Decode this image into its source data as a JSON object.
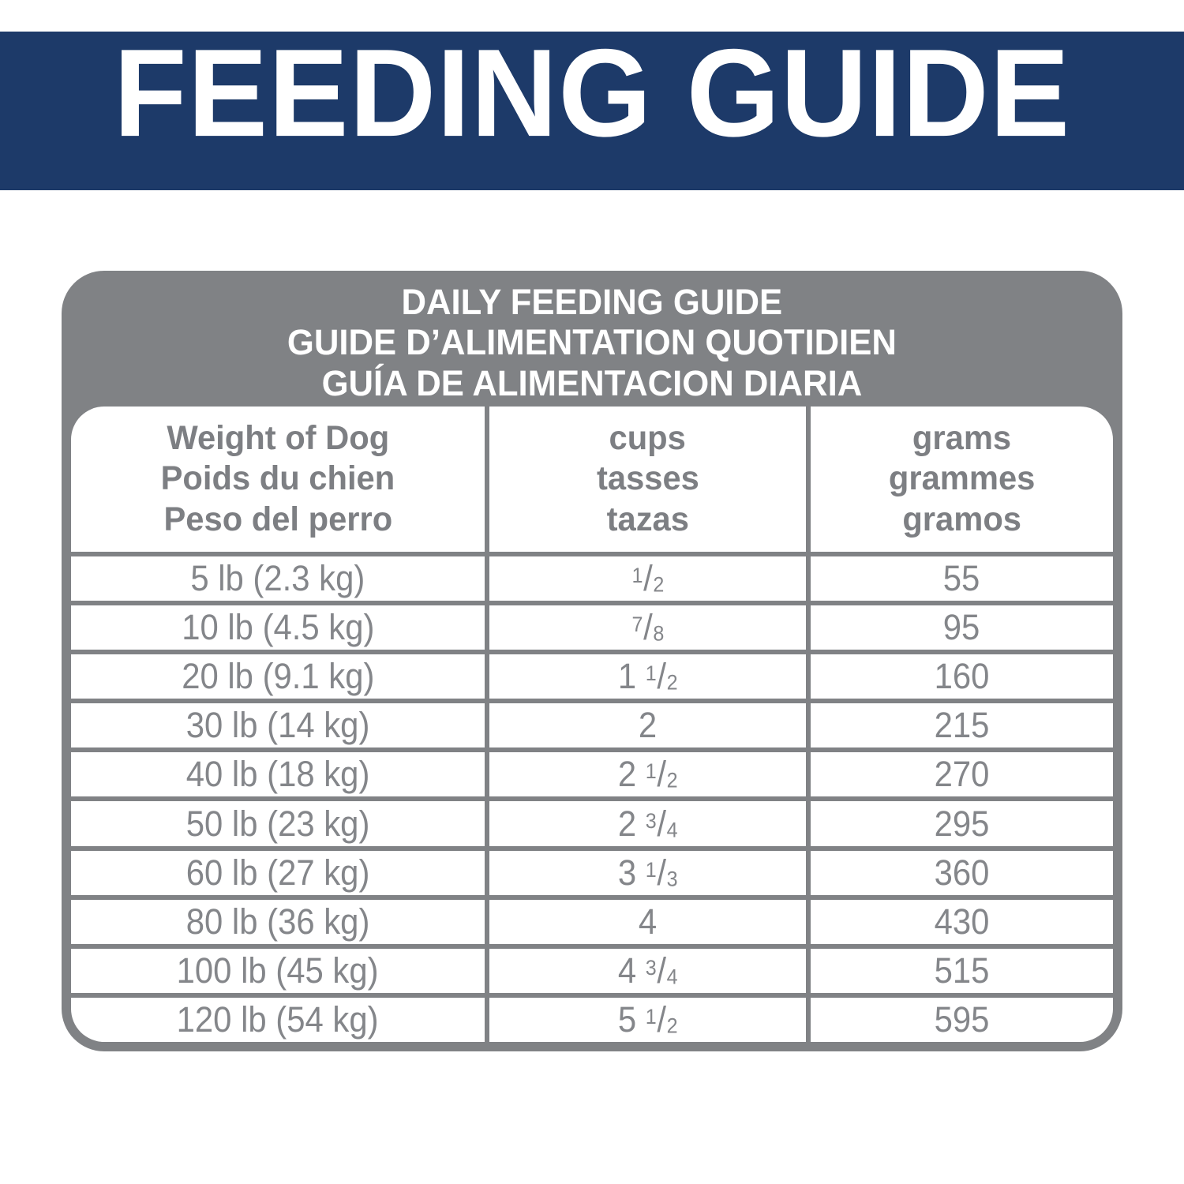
{
  "banner": {
    "title": "FEEDING GUIDE"
  },
  "colors": {
    "banner_bg": "#1d3a69",
    "banner_text": "#ffffff",
    "card_gray": "#808285",
    "card_title_text": "#ffffff",
    "table_text_gray": "#84868a",
    "table_bg": "#ffffff"
  },
  "card": {
    "title_lines": [
      "DAILY FEEDING GUIDE",
      "GUIDE D’ALIMENTATION QUOTIDIEN",
      "GUÍA DE ALIMENTACION DIARIA"
    ],
    "columns": [
      {
        "lines": [
          "Weight of Dog",
          "Poids du chien",
          "Peso del perro"
        ]
      },
      {
        "lines": [
          "cups",
          "tasses",
          "tazas"
        ]
      },
      {
        "lines": [
          "grams",
          "grammes",
          "gramos"
        ]
      }
    ]
  },
  "chart_data": {
    "type": "table",
    "title": "DAILY FEEDING GUIDE / GUIDE D’ALIMENTATION QUOTIDIEN / GUÍA DE ALIMENTACION DIARIA",
    "columns": [
      "Weight of Dog / Poids du chien / Peso del perro",
      "cups / tasses / tazas",
      "grams / grammes / gramos"
    ],
    "rows": [
      [
        "5 lb (2.3 kg)",
        "1/2",
        "55"
      ],
      [
        "10 lb (4.5 kg)",
        "7/8",
        "95"
      ],
      [
        "20 lb (9.1 kg)",
        "1 1/2",
        "160"
      ],
      [
        "30 lb (14 kg)",
        "2",
        "215"
      ],
      [
        "40 lb (18 kg)",
        "2 1/2",
        "270"
      ],
      [
        "50 lb (23 kg)",
        "2 3/4",
        "295"
      ],
      [
        "60 lb (27 kg)",
        "3 1/3",
        "360"
      ],
      [
        "80 lb (36 kg)",
        "4",
        "430"
      ],
      [
        "100 lb (45 kg)",
        "4 3/4",
        "515"
      ],
      [
        "120 lb (54 kg)",
        "5 1/2",
        "595"
      ]
    ]
  }
}
